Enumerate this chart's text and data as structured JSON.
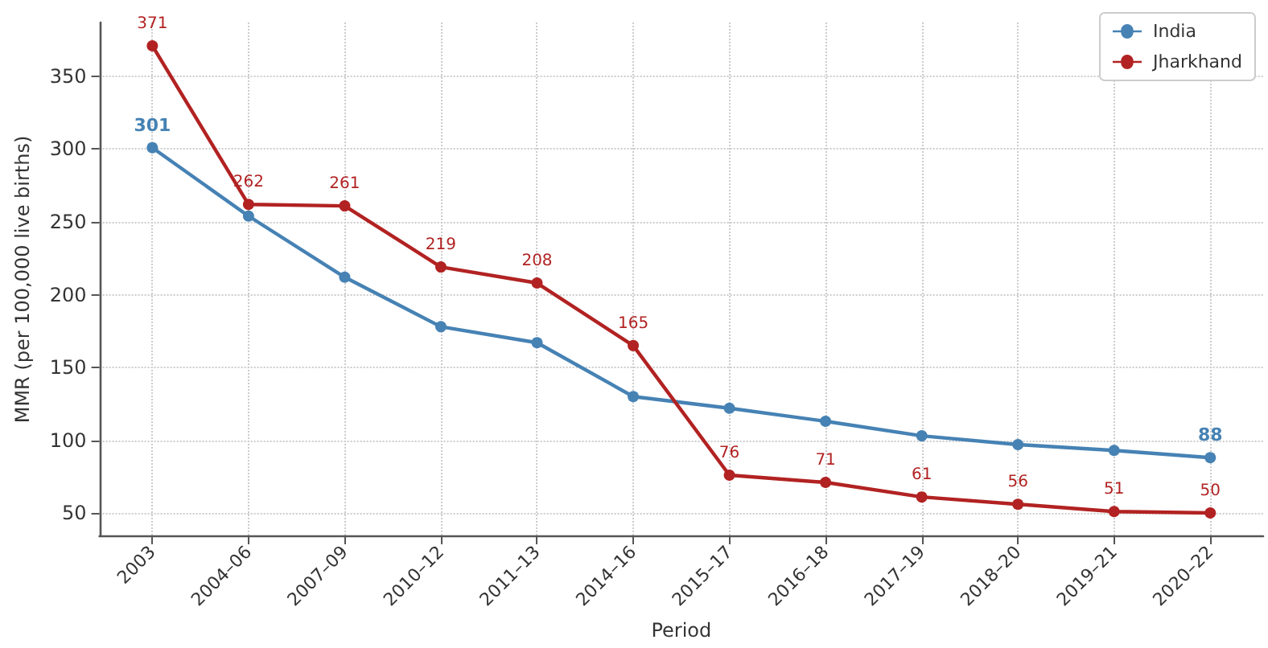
{
  "chart_data": {
    "type": "line",
    "xlabel": "Period",
    "ylabel": "MMR (per 100,000 live births)",
    "categories": [
      "2003",
      "2004–06",
      "2007–09",
      "2010–12",
      "2011–13",
      "2014–16",
      "2015–17",
      "2016–18",
      "2017–19",
      "2018–20",
      "2019–21",
      "2020–22"
    ],
    "series": [
      {
        "name": "India",
        "color": "#4682b4",
        "values": [
          301,
          254,
          212,
          178,
          167,
          130,
          122,
          113,
          103,
          97,
          93,
          88
        ],
        "value_labels": [
          "301",
          null,
          null,
          null,
          null,
          null,
          null,
          null,
          null,
          null,
          null,
          "88"
        ]
      },
      {
        "name": "Jharkhand",
        "color": "#b22222",
        "values": [
          371,
          262,
          261,
          219,
          208,
          165,
          76,
          71,
          61,
          56,
          51,
          50
        ],
        "value_labels": [
          "371",
          "262",
          "261",
          "219",
          "208",
          "165",
          "76",
          "71",
          "61",
          "56",
          "51",
          "50"
        ]
      }
    ],
    "ylim": [
      34,
      387
    ],
    "yticks": [
      50,
      100,
      150,
      200,
      250,
      300,
      350
    ],
    "grid": true,
    "legend": "top right",
    "marker": "circle",
    "line_style": "solid"
  }
}
